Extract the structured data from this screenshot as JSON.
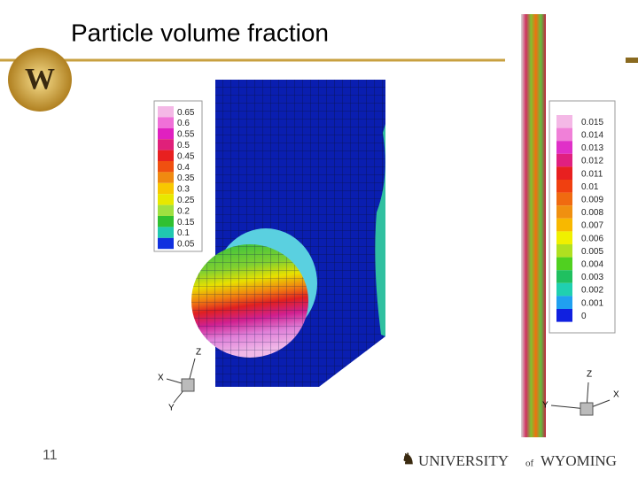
{
  "header": {
    "title": "Particle volume fraction"
  },
  "legend_left": {
    "labels": [
      "0.65",
      "0.6",
      "0.55",
      "0.5",
      "0.45",
      "0.4",
      "0.35",
      "0.3",
      "0.25",
      "0.2",
      "0.15",
      "0.1",
      "0.05"
    ],
    "colors": [
      "#f4b8e6",
      "#f070d8",
      "#e020c0",
      "#e0207a",
      "#e82020",
      "#f05010",
      "#f08a10",
      "#f8c800",
      "#e8e800",
      "#a0e040",
      "#30c030",
      "#20c8b0",
      "#1030e0"
    ]
  },
  "legend_right": {
    "labels": [
      "0.015",
      "0.014",
      "0.013",
      "0.012",
      "0.011",
      "0.01",
      "0.009",
      "0.008",
      "0.007",
      "0.006",
      "0.005",
      "0.004",
      "0.003",
      "0.002",
      "0.001",
      "0"
    ],
    "colors": [
      "#f4b8e6",
      "#f080d8",
      "#e030c8",
      "#e02080",
      "#e82020",
      "#f04010",
      "#f06a10",
      "#f09010",
      "#f8b800",
      "#f0f000",
      "#b0e020",
      "#50d020",
      "#20c060",
      "#20d0b0",
      "#20a0f0",
      "#1020e0"
    ]
  },
  "axes_left": {
    "z": "Z",
    "x": "X",
    "y": "Y"
  },
  "axes_right": {
    "z": "Z",
    "x": "X",
    "y": "Y"
  },
  "footer": {
    "page": "11",
    "university": "UNIVERSITY",
    "of": "of",
    "wyoming": "WYOMING"
  }
}
